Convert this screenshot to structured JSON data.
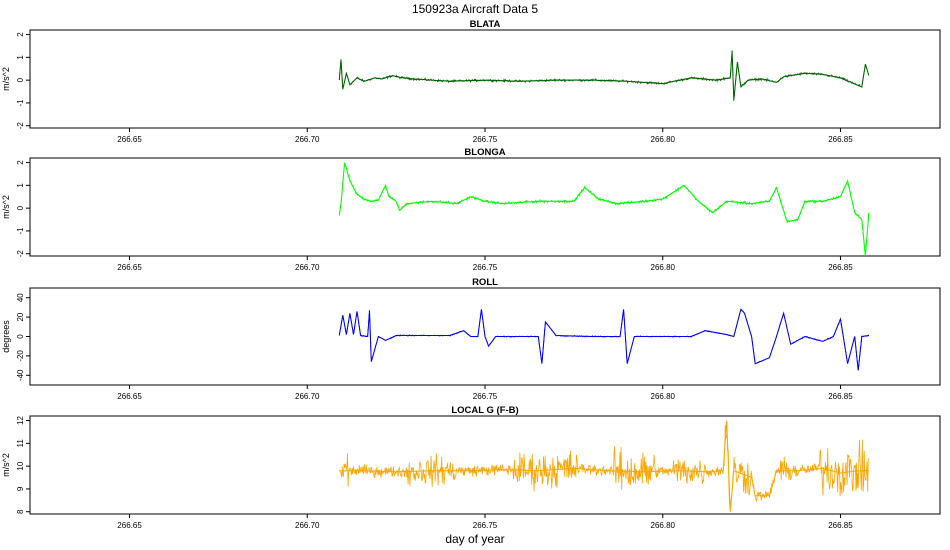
{
  "figure": {
    "title": "150923a   Aircraft Data 5",
    "xlabel": "day of year"
  },
  "chart_data": [
    {
      "type": "line",
      "title": "BLATA",
      "ylabel": "m/s^2",
      "color": "#006400",
      "xlim": [
        266.622,
        266.878
      ],
      "ylim": [
        -2.1,
        2.2
      ],
      "xticks": [
        266.65,
        266.7,
        266.75,
        266.8,
        266.85
      ],
      "xtick_labels": [
        "266.65",
        "266.70",
        "266.75",
        "266.80",
        "266.85"
      ],
      "yticks": [
        -2,
        -1,
        0,
        1,
        2
      ],
      "ytick_labels": [
        "-2",
        "-1",
        "0",
        "1",
        "2"
      ],
      "series": [
        {
          "x_range": [
            266.709,
            266.858
          ],
          "noise": 0.07,
          "points": [
            [
              266.709,
              0.0
            ],
            [
              266.7095,
              0.9
            ],
            [
              266.71,
              -0.4
            ],
            [
              266.711,
              0.3
            ],
            [
              266.712,
              -0.2
            ],
            [
              266.714,
              0.1
            ],
            [
              266.716,
              -0.05
            ],
            [
              266.719,
              0.1
            ],
            [
              266.721,
              0.05
            ],
            [
              266.724,
              0.2
            ],
            [
              266.726,
              0.12
            ],
            [
              266.73,
              0.05
            ],
            [
              266.74,
              -0.05
            ],
            [
              266.75,
              0.0
            ],
            [
              266.76,
              -0.05
            ],
            [
              266.77,
              0.0
            ],
            [
              266.78,
              0.0
            ],
            [
              266.79,
              -0.05
            ],
            [
              266.8,
              -0.15
            ],
            [
              266.808,
              0.1
            ],
            [
              266.815,
              0.0
            ],
            [
              266.819,
              0.1
            ],
            [
              266.8195,
              1.3
            ],
            [
              266.82,
              -0.9
            ],
            [
              266.821,
              0.8
            ],
            [
              266.822,
              -0.3
            ],
            [
              266.824,
              0.0
            ],
            [
              266.828,
              0.05
            ],
            [
              266.832,
              -0.1
            ],
            [
              266.834,
              0.15
            ],
            [
              266.836,
              0.2
            ],
            [
              266.84,
              0.3
            ],
            [
              266.845,
              0.25
            ],
            [
              266.85,
              0.1
            ],
            [
              266.853,
              -0.1
            ],
            [
              266.856,
              -0.3
            ],
            [
              266.857,
              0.7
            ],
            [
              266.858,
              0.2
            ]
          ]
        }
      ]
    },
    {
      "type": "line",
      "title": "BLONGA",
      "ylabel": "m/s^2",
      "color": "#00ff00",
      "xlim": [
        266.622,
        266.878
      ],
      "ylim": [
        -2.1,
        2.2
      ],
      "xticks": [
        266.65,
        266.7,
        266.75,
        266.8,
        266.85
      ],
      "xtick_labels": [
        "266.65",
        "266.70",
        "266.75",
        "266.80",
        "266.85"
      ],
      "yticks": [
        -2,
        -1,
        0,
        1,
        2
      ],
      "ytick_labels": [
        "-2",
        "-1",
        "0",
        "1",
        "2"
      ],
      "series": [
        {
          "x_range": [
            266.709,
            266.858
          ],
          "noise": 0.08,
          "points": [
            [
              266.709,
              -0.3
            ],
            [
              266.7095,
              0.2
            ],
            [
              266.7105,
              2.0
            ],
            [
              266.712,
              1.2
            ],
            [
              266.714,
              0.6
            ],
            [
              266.716,
              0.4
            ],
            [
              266.718,
              0.3
            ],
            [
              266.72,
              0.35
            ],
            [
              266.722,
              1.0
            ],
            [
              266.723,
              0.5
            ],
            [
              266.725,
              0.3
            ],
            [
              266.726,
              -0.1
            ],
            [
              266.728,
              0.2
            ],
            [
              266.735,
              0.3
            ],
            [
              266.742,
              0.2
            ],
            [
              266.746,
              0.5
            ],
            [
              266.75,
              0.3
            ],
            [
              266.755,
              0.2
            ],
            [
              266.765,
              0.3
            ],
            [
              266.775,
              0.3
            ],
            [
              266.778,
              0.9
            ],
            [
              266.782,
              0.4
            ],
            [
              266.787,
              0.2
            ],
            [
              266.795,
              0.3
            ],
            [
              266.8,
              0.4
            ],
            [
              266.806,
              1.0
            ],
            [
              266.81,
              0.3
            ],
            [
              266.814,
              -0.2
            ],
            [
              266.818,
              0.3
            ],
            [
              266.825,
              0.2
            ],
            [
              266.83,
              0.3
            ],
            [
              266.832,
              0.9
            ],
            [
              266.834,
              -0.1
            ],
            [
              266.835,
              -0.6
            ],
            [
              266.838,
              -0.5
            ],
            [
              266.84,
              0.3
            ],
            [
              266.845,
              0.3
            ],
            [
              266.85,
              0.5
            ],
            [
              266.852,
              1.2
            ],
            [
              266.854,
              -0.2
            ],
            [
              266.856,
              -0.5
            ],
            [
              266.857,
              -2.1
            ],
            [
              266.858,
              -0.2
            ]
          ]
        }
      ]
    },
    {
      "type": "line",
      "title": "ROLL",
      "ylabel": "degrees",
      "color": "#0000ff",
      "xlim": [
        266.622,
        266.878
      ],
      "ylim": [
        -50,
        50
      ],
      "xticks": [
        266.65,
        266.7,
        266.75,
        266.8,
        266.85
      ],
      "xtick_labels": [
        "266.65",
        "266.70",
        "266.75",
        "266.80",
        "266.85"
      ],
      "yticks": [
        -40,
        -20,
        0,
        20,
        40
      ],
      "ytick_labels": [
        "-40",
        "-20",
        "0",
        "20",
        "40"
      ],
      "series": [
        {
          "x_range": [
            266.709,
            266.858
          ],
          "noise": 0.8,
          "points": [
            [
              266.709,
              1
            ],
            [
              266.71,
              22
            ],
            [
              266.711,
              2
            ],
            [
              266.712,
              24
            ],
            [
              266.713,
              2
            ],
            [
              266.714,
              26
            ],
            [
              266.715,
              1
            ],
            [
              266.717,
              0
            ],
            [
              266.7175,
              27
            ],
            [
              266.718,
              -26
            ],
            [
              266.72,
              0
            ],
            [
              266.722,
              -4
            ],
            [
              266.725,
              1
            ],
            [
              266.74,
              1
            ],
            [
              266.744,
              6
            ],
            [
              266.746,
              0
            ],
            [
              266.748,
              0
            ],
            [
              266.749,
              28
            ],
            [
              266.75,
              0
            ],
            [
              266.751,
              -10
            ],
            [
              266.753,
              0
            ],
            [
              266.765,
              0
            ],
            [
              266.766,
              -28
            ],
            [
              266.767,
              15
            ],
            [
              266.77,
              1
            ],
            [
              266.78,
              0
            ],
            [
              266.788,
              0
            ],
            [
              266.789,
              28
            ],
            [
              266.79,
              -28
            ],
            [
              266.792,
              0
            ],
            [
              266.8,
              0
            ],
            [
              266.808,
              0
            ],
            [
              266.812,
              6
            ],
            [
              266.818,
              2
            ],
            [
              266.82,
              0
            ],
            [
              266.822,
              28
            ],
            [
              266.823,
              24
            ],
            [
              266.825,
              0
            ],
            [
              266.826,
              -28
            ],
            [
              266.83,
              -22
            ],
            [
              266.832,
              0
            ],
            [
              266.834,
              24
            ],
            [
              266.836,
              -8
            ],
            [
              266.84,
              0
            ],
            [
              266.845,
              -5
            ],
            [
              266.848,
              0
            ],
            [
              266.85,
              18
            ],
            [
              266.852,
              -28
            ],
            [
              266.854,
              0
            ],
            [
              266.855,
              -35
            ],
            [
              266.856,
              0
            ],
            [
              266.858,
              1
            ]
          ]
        }
      ]
    },
    {
      "type": "line",
      "title": "LOCAL G (F-B)",
      "ylabel": "m/s^2",
      "color": "#ffa500",
      "xlim": [
        266.622,
        266.878
      ],
      "ylim": [
        7.9,
        12.2
      ],
      "xticks": [
        266.65,
        266.7,
        266.75,
        266.8,
        266.85
      ],
      "xtick_labels": [
        "266.65",
        "266.70",
        "266.75",
        "266.80",
        "266.85"
      ],
      "yticks": [
        8,
        9,
        10,
        11,
        12
      ],
      "ytick_labels": [
        "8",
        "9",
        "10",
        "11",
        "12"
      ],
      "series": [
        {
          "x_range": [
            266.709,
            266.858
          ],
          "noise": 0.35,
          "points": [
            [
              266.709,
              9.8
            ],
            [
              266.715,
              9.8
            ],
            [
              266.725,
              9.75
            ],
            [
              266.735,
              9.8
            ],
            [
              266.745,
              9.8
            ],
            [
              266.755,
              9.85
            ],
            [
              266.765,
              9.8
            ],
            [
              266.775,
              9.9
            ],
            [
              266.785,
              9.8
            ],
            [
              266.795,
              9.75
            ],
            [
              266.805,
              9.8
            ],
            [
              266.812,
              9.75
            ],
            [
              266.817,
              9.8
            ],
            [
              266.818,
              12.0
            ],
            [
              266.819,
              8.0
            ],
            [
              266.82,
              9.8
            ],
            [
              266.825,
              9.5
            ],
            [
              266.826,
              8.7
            ],
            [
              266.83,
              8.7
            ],
            [
              266.832,
              9.8
            ],
            [
              266.838,
              9.8
            ],
            [
              266.845,
              9.9
            ],
            [
              266.85,
              9.7
            ],
            [
              266.855,
              9.8
            ],
            [
              266.858,
              9.8
            ]
          ],
          "bursts": [
            [
              266.7095,
              266.7115,
              1.3
            ],
            [
              266.728,
              266.742,
              0.9
            ],
            [
              266.758,
              266.776,
              1.1
            ],
            [
              266.786,
              266.798,
              1.3
            ],
            [
              266.803,
              266.812,
              0.9
            ],
            [
              266.817,
              266.825,
              1.2
            ],
            [
              266.833,
              266.838,
              0.7
            ],
            [
              266.843,
              266.858,
              1.5
            ]
          ]
        }
      ]
    }
  ]
}
